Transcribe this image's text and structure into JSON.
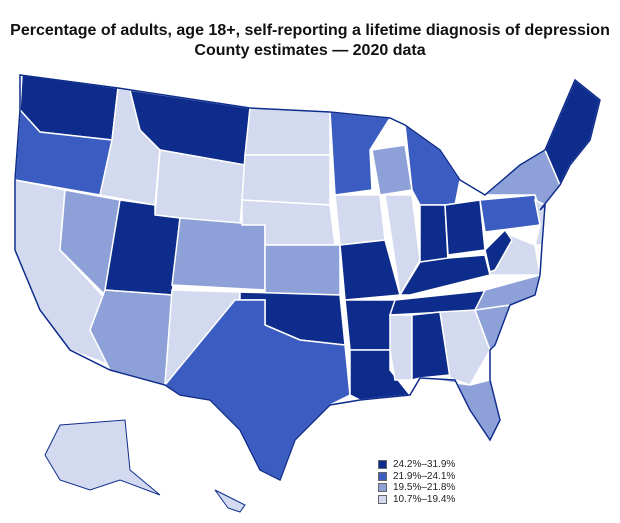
{
  "title": "Percentage of adults, age 18+, self-reporting a lifetime diagnosis of depression",
  "subtitle": "County estimates — 2020 data",
  "legend": [
    {
      "label": "24.2%–31.9%",
      "color": "#0d2c8c"
    },
    {
      "label": "21.9%–24.1%",
      "color": "#3b5cc0"
    },
    {
      "label": "19.5%–21.8%",
      "color": "#8ea0d8"
    },
    {
      "label": "10.7%–19.4%",
      "color": "#d3daef"
    }
  ],
  "border_color": "#0d2c8c"
}
